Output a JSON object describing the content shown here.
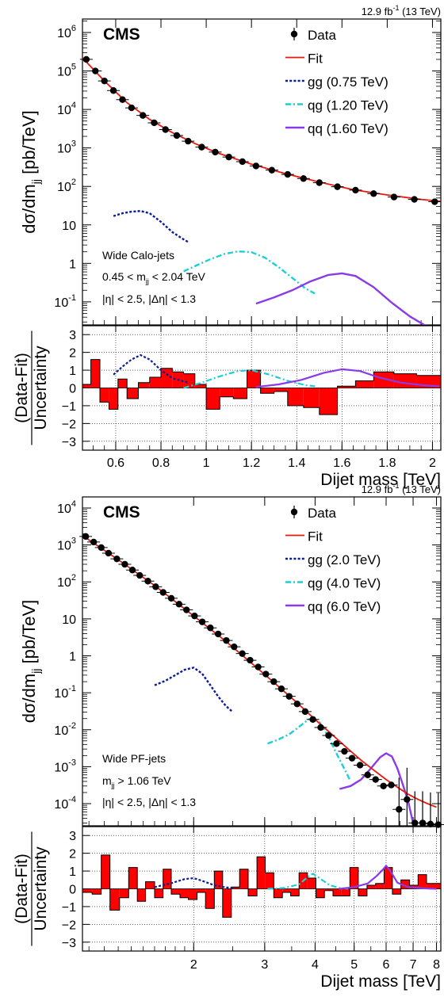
{
  "chart_data": [
    {
      "type": "scatter",
      "panel": "top",
      "lumi_label": "12.9 fb",
      "lumi_sup": "-1",
      "lumi_energy": " (13 TeV)",
      "experiment": "CMS",
      "ylabel_main": "dσ/dm",
      "ylabel_sub": "jj",
      "ylabel_unit": " [pb/TeV]",
      "ratio_label_top": "(Data-Fit)",
      "ratio_label_bottom": "Uncertainty",
      "xlabel": "Dijet mass [TeV]",
      "xscale": "linear",
      "yscale": "log",
      "xlim": [
        0.453,
        2.037
      ],
      "ylim_log10": [
        -1.6,
        6.35
      ],
      "ratio_ylim": [
        -3.5,
        3.5
      ],
      "x_ticks": [
        0.6,
        0.8,
        1,
        1.2,
        1.4,
        1.6,
        1.8,
        2
      ],
      "x_tick_labels": [
        "0.6",
        "0.8",
        "1",
        "1.2",
        "1.4",
        "1.6",
        "1.8",
        "2"
      ],
      "y_ticks_log10": [
        -1,
        0,
        1,
        2,
        3,
        4,
        5,
        6
      ],
      "y_tick_labels": [
        {
          "base": "10",
          "sup": "-1"
        },
        {
          "base": "1",
          "sup": ""
        },
        {
          "base": "10",
          "sup": ""
        },
        {
          "base": "10",
          "sup": "2"
        },
        {
          "base": "10",
          "sup": "3"
        },
        {
          "base": "10",
          "sup": "4"
        },
        {
          "base": "10",
          "sup": "5"
        },
        {
          "base": "10",
          "sup": "6"
        }
      ],
      "ratio_ticks": [
        -3,
        -2,
        -1,
        0,
        1,
        2,
        3
      ],
      "ratio_tick_labels": [
        "−3",
        "−2",
        "−1",
        "0",
        "1",
        "2",
        "3"
      ],
      "legend_position": "top-right",
      "legend": [
        {
          "label": "Data",
          "kind": "data",
          "color": "#000000"
        },
        {
          "label": "Fit",
          "kind": "line",
          "color": "#e8190f"
        },
        {
          "label": "gg (0.75 TeV)",
          "kind": "dotted",
          "color": "#0a1c96"
        },
        {
          "label": "qg (1.20 TeV)",
          "kind": "dashdot",
          "color": "#1ccfd6"
        },
        {
          "label": "qq (1.60 TeV)",
          "kind": "solid",
          "color": "#8a3ae8"
        }
      ],
      "annotations": [
        {
          "text": "Wide Calo-jets"
        },
        {
          "text": "0.45 < m",
          "sub": "jj",
          "tail": " < 2.04 TeV"
        },
        {
          "text": "|η| < 2.5, |Δη| < 1.3"
        }
      ],
      "data_points": {
        "x": [
          0.47,
          0.51,
          0.55,
          0.59,
          0.63,
          0.67,
          0.72,
          0.77,
          0.82,
          0.87,
          0.92,
          0.98,
          1.04,
          1.1,
          1.16,
          1.22,
          1.29,
          1.36,
          1.43,
          1.5,
          1.58,
          1.66,
          1.74,
          1.83,
          1.92,
          2.01
        ],
        "y": [
          200000,
          100000,
          55000,
          31000,
          18000,
          11000,
          7000,
          4500,
          3000,
          2100,
          1500,
          1050,
          780,
          580,
          440,
          340,
          265,
          205,
          160,
          125,
          98,
          80,
          65,
          53,
          46,
          40
        ]
      },
      "fit": {
        "x": [
          0.453,
          0.55,
          0.65,
          0.75,
          0.85,
          0.95,
          1.05,
          1.2,
          1.35,
          1.5,
          1.65,
          1.8,
          1.95,
          2.037
        ],
        "y": [
          220000,
          55000,
          15000,
          5500,
          2500,
          1300,
          740,
          380,
          215,
          130,
          82,
          60,
          46,
          41
        ]
      },
      "signals": [
        {
          "name": "gg (0.75 TeV)",
          "x": [
            0.59,
            0.63,
            0.67,
            0.71,
            0.75,
            0.8,
            0.85,
            0.9,
            0.92
          ],
          "y": [
            17,
            20,
            22,
            23,
            20,
            12,
            6.5,
            4.2,
            3.6
          ]
        },
        {
          "name": "qg (1.20 TeV)",
          "x": [
            0.9,
            0.96,
            1.02,
            1.08,
            1.14,
            1.2,
            1.26,
            1.32,
            1.38,
            1.44,
            1.48
          ],
          "y": [
            0.62,
            0.9,
            1.3,
            1.75,
            2.05,
            1.95,
            1.4,
            0.8,
            0.42,
            0.22,
            0.165
          ]
        },
        {
          "name": "qq (1.60 TeV)",
          "x": [
            1.22,
            1.3,
            1.38,
            1.46,
            1.54,
            1.6,
            1.66,
            1.74,
            1.82,
            1.9,
            1.98,
            2.03
          ],
          "y": [
            0.09,
            0.13,
            0.2,
            0.34,
            0.5,
            0.55,
            0.47,
            0.24,
            0.095,
            0.042,
            0.022,
            0.017
          ]
        }
      ],
      "ratio": {
        "edges": [
          0.453,
          0.49,
          0.53,
          0.57,
          0.61,
          0.65,
          0.7,
          0.75,
          0.8,
          0.85,
          0.9,
          0.95,
          1.0,
          1.06,
          1.12,
          1.18,
          1.24,
          1.3,
          1.36,
          1.43,
          1.5,
          1.58,
          1.66,
          1.74,
          1.83,
          1.93,
          2.037
        ],
        "values": [
          0.2,
          1.6,
          -0.8,
          -1.2,
          0.5,
          -0.6,
          0.3,
          0.6,
          1.1,
          0.9,
          0.8,
          0.2,
          -1.2,
          -0.5,
          -0.6,
          1.0,
          -0.3,
          -0.2,
          -1.0,
          -1.1,
          -1.5,
          0.1,
          0.4,
          0.9,
          0.8,
          0.7
        ]
      },
      "ratio_signals": [
        {
          "name": "gg (0.75 TeV)",
          "x": [
            0.59,
            0.63,
            0.67,
            0.71,
            0.75,
            0.8,
            0.85,
            0.92
          ],
          "y": [
            0.75,
            1.2,
            1.6,
            1.85,
            1.6,
            1.0,
            0.55,
            0.3
          ]
        },
        {
          "name": "qg (1.20 TeV)",
          "x": [
            0.9,
            0.98,
            1.06,
            1.14,
            1.2,
            1.28,
            1.36,
            1.44,
            1.48
          ],
          "y": [
            0.0,
            0.3,
            0.65,
            0.95,
            1.0,
            0.75,
            0.4,
            0.15,
            0.1
          ]
        },
        {
          "name": "qq (1.60 TeV)",
          "x": [
            1.22,
            1.32,
            1.42,
            1.52,
            1.6,
            1.68,
            1.76,
            1.86,
            1.96,
            2.03
          ],
          "y": [
            0.05,
            0.2,
            0.45,
            0.85,
            1.05,
            0.95,
            0.6,
            0.3,
            0.15,
            0.1
          ]
        }
      ]
    },
    {
      "type": "scatter",
      "panel": "bottom",
      "lumi_label": "12.9 fb",
      "lumi_sup": "-1",
      "lumi_energy": " (13 TeV)",
      "experiment": "CMS",
      "ylabel_main": "dσ/dm",
      "ylabel_sub": "jj",
      "ylabel_unit": " [pb/TeV]",
      "ratio_label_top": "(Data-Fit)",
      "ratio_label_bottom": "Uncertainty",
      "xlabel": "Dijet mass [TeV]",
      "xscale": "log",
      "yscale": "log",
      "xlim": [
        1.06,
        8.2
      ],
      "ylim_log10": [
        -4.6,
        4.3
      ],
      "ratio_ylim": [
        -3.5,
        3.5
      ],
      "x_ticks": [
        2,
        3,
        4,
        5,
        6,
        7,
        8
      ],
      "x_tick_labels": [
        "2",
        "3",
        "4",
        "5",
        "6",
        "7",
        "8"
      ],
      "y_ticks_log10": [
        -4,
        -3,
        -2,
        -1,
        0,
        1,
        2,
        3,
        4
      ],
      "y_tick_labels": [
        {
          "base": "10",
          "sup": "-4"
        },
        {
          "base": "10",
          "sup": "-3"
        },
        {
          "base": "10",
          "sup": "-2"
        },
        {
          "base": "10",
          "sup": "-1"
        },
        {
          "base": "1",
          "sup": ""
        },
        {
          "base": "10",
          "sup": ""
        },
        {
          "base": "10",
          "sup": "2"
        },
        {
          "base": "10",
          "sup": "3"
        },
        {
          "base": "10",
          "sup": "4"
        }
      ],
      "ratio_ticks": [
        -3,
        -2,
        -1,
        0,
        1,
        2,
        3
      ],
      "ratio_tick_labels": [
        "−3",
        "−2",
        "−1",
        "0",
        "1",
        "2",
        "3"
      ],
      "legend_position": "top-right",
      "legend": [
        {
          "label": "Data",
          "kind": "data",
          "color": "#000000"
        },
        {
          "label": "Fit",
          "kind": "line",
          "color": "#e8190f"
        },
        {
          "label": "gg (2.0 TeV)",
          "kind": "dotted",
          "color": "#0a1c96"
        },
        {
          "label": "qg (4.0 TeV)",
          "kind": "dashdot",
          "color": "#1ccfd6"
        },
        {
          "label": "qq (6.0 TeV)",
          "kind": "solid",
          "color": "#8a3ae8"
        }
      ],
      "annotations": [
        {
          "text": "Wide PF-jets"
        },
        {
          "text": "m",
          "sub": "jj",
          "tail": " > 1.06 TeV"
        },
        {
          "text": "|η| < 2.5, |Δη| < 1.3"
        }
      ],
      "data_points": {
        "x": [
          1.08,
          1.13,
          1.18,
          1.23,
          1.29,
          1.35,
          1.41,
          1.47,
          1.54,
          1.61,
          1.68,
          1.76,
          1.84,
          1.92,
          2.01,
          2.1,
          2.2,
          2.3,
          2.41,
          2.52,
          2.64,
          2.76,
          2.89,
          3.02,
          3.16,
          3.3,
          3.45,
          3.61,
          3.78,
          3.95,
          4.13,
          4.32,
          4.52,
          4.73,
          4.94,
          5.17,
          5.4,
          5.65,
          5.91,
          6.18,
          6.46,
          6.76,
          7.07,
          7.39,
          7.73,
          8.08
        ],
        "y": [
          1700,
          1200,
          850,
          600,
          420,
          300,
          210,
          150,
          105,
          74,
          52,
          36,
          25,
          17.5,
          12,
          8.3,
          5.7,
          3.9,
          2.6,
          1.75,
          1.15,
          0.76,
          0.5,
          0.32,
          0.2,
          0.128,
          0.08,
          0.05,
          0.031,
          0.019,
          0.0115,
          0.007,
          0.0042,
          0.0026,
          0.0017,
          0.0011,
          0.0006,
          0.00045,
          0.0003,
          0.00032,
          7e-05,
          0.00013,
          3e-05,
          3e-05,
          2.8e-05,
          2.7e-05
        ]
      },
      "fit": {
        "x": [
          1.06,
          1.3,
          1.6,
          2.0,
          2.4,
          2.8,
          3.2,
          3.6,
          4.0,
          4.4,
          4.8,
          5.2,
          5.6,
          6.0,
          6.4,
          6.8,
          7.2,
          7.6,
          8.0
        ],
        "y": [
          1800,
          400,
          80,
          12,
          2.5,
          0.6,
          0.17,
          0.055,
          0.019,
          0.0075,
          0.0032,
          0.0015,
          0.0008,
          0.00045,
          0.00028,
          0.00018,
          0.00013,
          0.0001,
          8e-05
        ]
      },
      "signals": [
        {
          "name": "gg (2.0 TeV)",
          "x": [
            1.6,
            1.7,
            1.8,
            1.9,
            2.0,
            2.1,
            2.2,
            2.3,
            2.4,
            2.5
          ],
          "y": [
            0.16,
            0.21,
            0.3,
            0.42,
            0.48,
            0.33,
            0.16,
            0.08,
            0.045,
            0.03
          ]
        },
        {
          "name": "qg (4.0 TeV)",
          "x": [
            3.05,
            3.25,
            3.45,
            3.65,
            3.85,
            3.95,
            4.1,
            4.3,
            4.5,
            4.7,
            4.9
          ],
          "y": [
            0.0042,
            0.0055,
            0.0075,
            0.012,
            0.019,
            0.02,
            0.016,
            0.007,
            0.0025,
            0.001,
            0.0004
          ]
        },
        {
          "name": "qq (6.0 TeV)",
          "x": [
            4.6,
            4.9,
            5.2,
            5.5,
            5.8,
            6.0,
            6.2,
            6.4,
            6.6,
            6.8,
            7.0
          ],
          "y": [
            0.00025,
            0.0003,
            0.00045,
            0.0009,
            0.0018,
            0.0023,
            0.0019,
            0.0009,
            0.00033,
            0.00012,
            3e-05
          ]
        }
      ],
      "ratio": {
        "edges": [
          1.06,
          1.12,
          1.18,
          1.24,
          1.31,
          1.38,
          1.45,
          1.52,
          1.6,
          1.68,
          1.76,
          1.85,
          1.94,
          2.04,
          2.14,
          2.25,
          2.36,
          2.48,
          2.6,
          2.73,
          2.87,
          3.01,
          3.16,
          3.32,
          3.48,
          3.65,
          3.83,
          4.02,
          4.22,
          4.43,
          4.65,
          4.88,
          5.12,
          5.38,
          5.65,
          5.93,
          6.22,
          6.53,
          6.86,
          7.2,
          7.56,
          8.2
        ],
        "values": [
          -0.2,
          -0.3,
          1.9,
          -1.2,
          -0.5,
          1.2,
          -0.7,
          0.4,
          -0.5,
          1.1,
          -0.3,
          -0.5,
          -0.6,
          -0.2,
          -1.1,
          1.0,
          -1.6,
          0.1,
          1.1,
          -0.4,
          1.8,
          0.9,
          -0.5,
          -0.2,
          -0.4,
          0.9,
          0.6,
          -0.5,
          -0.1,
          -0.4,
          -0.4,
          1.2,
          -0.4,
          0.2,
          0.3,
          1.2,
          -0.3,
          0.5,
          0.2,
          0.8,
          0.3
        ]
      },
      "ratio_signals": [
        {
          "name": "gg (2.0 TeV)",
          "x": [
            1.6,
            1.75,
            1.9,
            2.0,
            2.1,
            2.25,
            2.4,
            2.5
          ],
          "y": [
            0.1,
            0.3,
            0.55,
            0.6,
            0.45,
            0.2,
            0.08,
            0.05
          ]
        },
        {
          "name": "qg (4.0 TeV)",
          "x": [
            3.05,
            3.35,
            3.65,
            3.85,
            3.95,
            4.1,
            4.35,
            4.6,
            4.9
          ],
          "y": [
            0.0,
            0.05,
            0.25,
            0.7,
            0.85,
            0.6,
            0.2,
            0.05,
            0.0
          ]
        },
        {
          "name": "qq (6.0 TeV)",
          "x": [
            4.6,
            5.0,
            5.4,
            5.7,
            5.9,
            6.0,
            6.15,
            6.4,
            6.8,
            7.2,
            7.6,
            8.0
          ],
          "y": [
            0.0,
            0.1,
            0.3,
            0.75,
            1.1,
            1.3,
            1.0,
            0.35,
            0.1,
            0.05,
            0.02,
            0.0
          ]
        }
      ]
    }
  ]
}
